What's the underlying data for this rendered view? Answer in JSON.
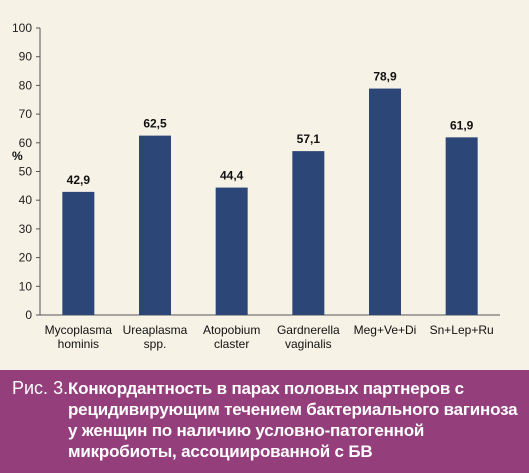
{
  "chart_data": {
    "type": "bar",
    "categories": [
      [
        "Mycoplasma",
        "hominis"
      ],
      [
        "Ureaplasma",
        "spp."
      ],
      [
        "Atopobium",
        "claster"
      ],
      [
        "Gardnerella",
        "vaginalis"
      ],
      [
        "Meg+Ve+Di"
      ],
      [
        "Sn+Lep+Ru"
      ]
    ],
    "values": [
      42.9,
      62.5,
      44.4,
      57.1,
      78.9,
      61.9
    ],
    "value_labels": [
      "42,9",
      "62,5",
      "44,4",
      "57,1",
      "78,9",
      "61,9"
    ],
    "ylabel": "%",
    "ylim": [
      0,
      100
    ],
    "yticks": [
      0,
      10,
      20,
      30,
      40,
      50,
      60,
      70,
      80,
      90,
      100
    ],
    "grid": false,
    "bar_color": "#2b4677"
  },
  "caption": {
    "label": "Рис. 3.",
    "text": "Конкордантность в парах половых партнеров с рецидивирующим течением бактериального вагиноза у женщин по наличию условно-патогенной микробиоты, ассоциированной с БВ"
  }
}
